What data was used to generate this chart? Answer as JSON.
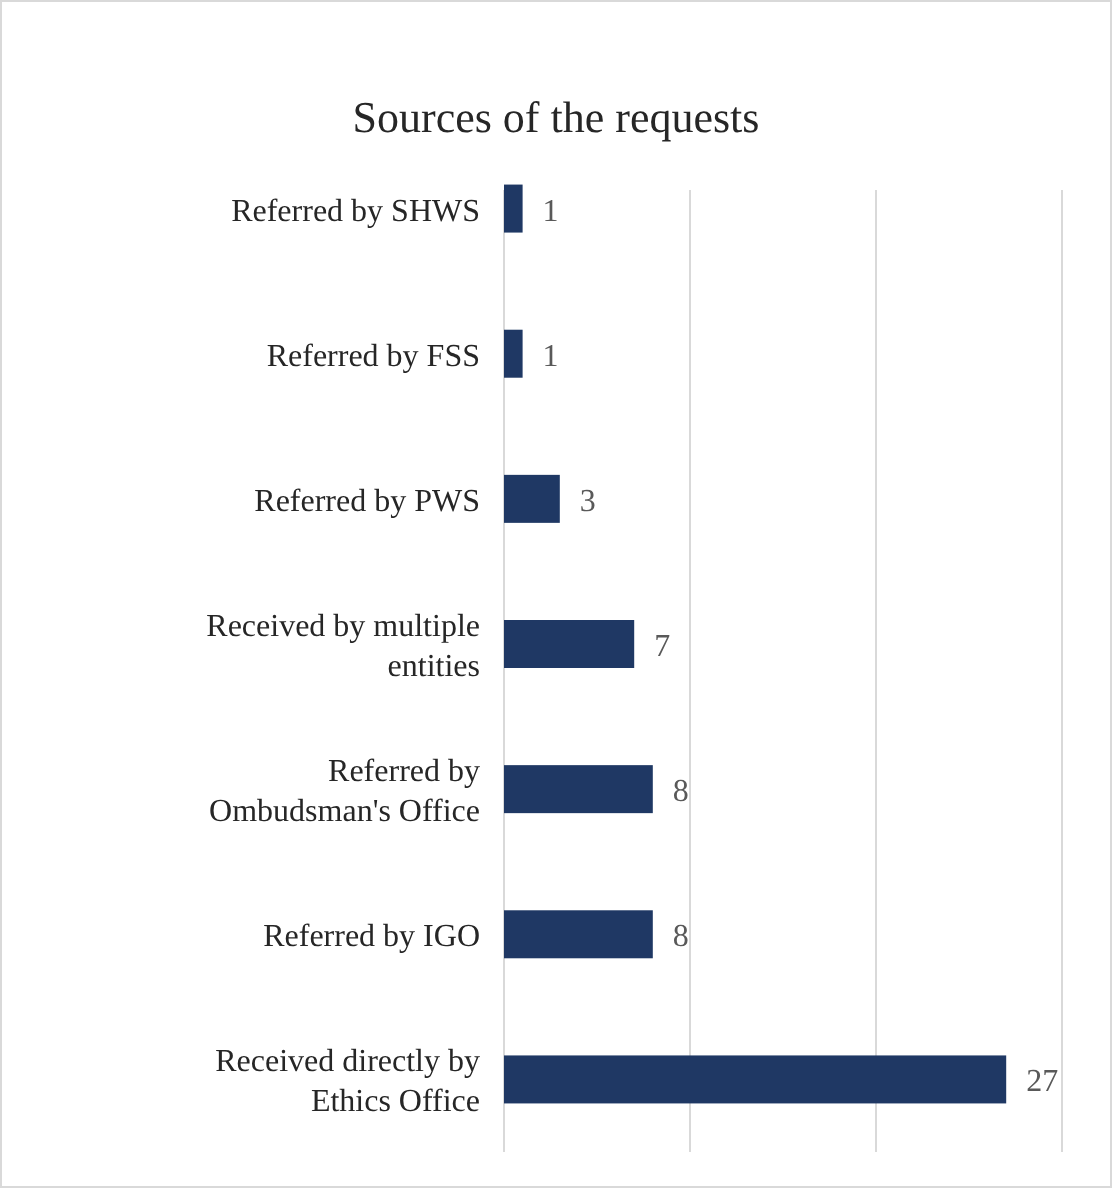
{
  "chart_data": {
    "type": "bar",
    "orientation": "horizontal",
    "title": "Sources of the requests",
    "categories": [
      "Referred by SHWS",
      "Referred by FSS",
      "Referred by PWS",
      "Received by multiple entities",
      "Referred by Ombudsman's Office",
      "Referred by IGO",
      "Received directly by Ethics Office"
    ],
    "values": [
      1,
      1,
      3,
      7,
      8,
      8,
      27
    ],
    "color": "#1f3864",
    "xlim": [
      0,
      30
    ],
    "xticks": [
      {
        "value": 0,
        "label": null
      },
      {
        "value": 10,
        "label": null
      },
      {
        "value": 20,
        "label": null
      },
      {
        "value": 30,
        "label": null
      }
    ],
    "grid": "x",
    "data_labels": true,
    "tick_labels": "y"
  }
}
